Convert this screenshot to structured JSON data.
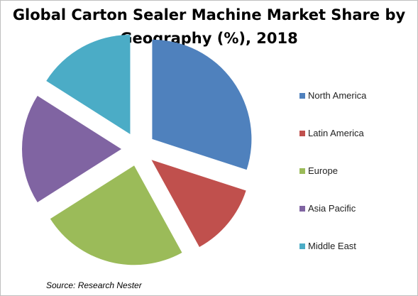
{
  "chart_data": {
    "type": "pie",
    "title": "Global Carton Sealer Machine Market Share by Geography (%), 2018",
    "title_lines": [
      "Global Carton Sealer Machine Market Share by",
      "Geography (%), 2018"
    ],
    "series": [
      {
        "name": "Market Share (%)",
        "categories": [
          "North America",
          "Latin America",
          "Europe",
          "Asia Pacific",
          "Middle East"
        ],
        "values": [
          30,
          12,
          24,
          18,
          16
        ],
        "colors": [
          "#4F81BD",
          "#C0504D",
          "#9BBB59",
          "#8064A2",
          "#4BACC6"
        ]
      }
    ],
    "exploded": true,
    "start_angle_deg": 0,
    "direction": "clockwise",
    "legend_position": "right",
    "data_labels": false
  },
  "source": "Source: Research Nester"
}
